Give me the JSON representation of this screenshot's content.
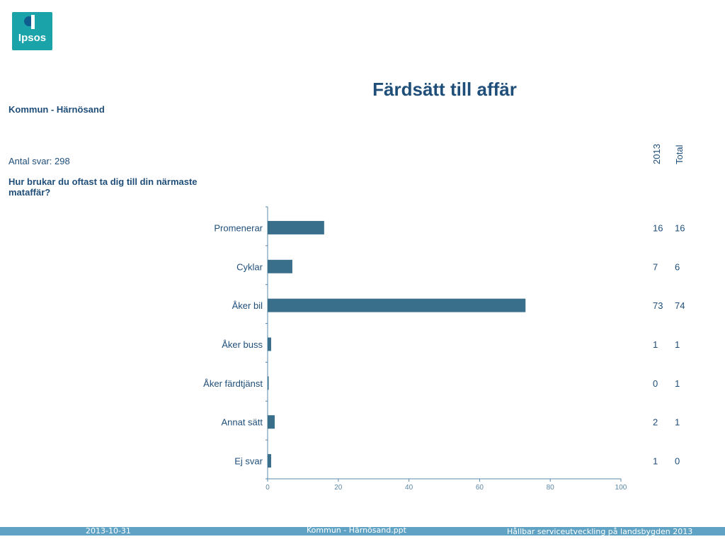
{
  "logo": {
    "text": "Ipsos"
  },
  "header": {
    "title": "Färdsätt till affär",
    "subtitle": "Kommun - Härnösand",
    "answers": "Antal svar: 298",
    "question": "Hur brukar du oftast ta dig till din närmaste mataffär?"
  },
  "columns": [
    "2013",
    "Total"
  ],
  "colors": {
    "bar": "#3a6f8c",
    "text": "#1f4e79",
    "axis": "#5a88a8",
    "footer": "#5fa2c4",
    "logo": "#1aa3a8"
  },
  "chart_data": {
    "type": "bar",
    "orientation": "horizontal",
    "title": "Färdsätt till affär",
    "categories": [
      "Promenerar",
      "Cyklar",
      "Åker bil",
      "Åker buss",
      "Åker färdtjänst",
      "Annat sätt",
      "Ej svar"
    ],
    "values": [
      16,
      7,
      73,
      1,
      0.3,
      2,
      1
    ],
    "table": {
      "2013": [
        "16",
        "7",
        "73",
        "1",
        "0",
        "2",
        "1"
      ],
      "Total": [
        "16",
        "6",
        "74",
        "1",
        "1",
        "1",
        "0"
      ]
    },
    "xlim": [
      0,
      100
    ],
    "xticks": [
      0,
      20,
      40,
      60,
      80,
      100
    ],
    "grid": false
  },
  "footer": {
    "date": "2013-10-31",
    "file": "Kommun - Härnösand.ppt",
    "project": "Hållbar serviceutveckling på landsbygden 2013"
  }
}
